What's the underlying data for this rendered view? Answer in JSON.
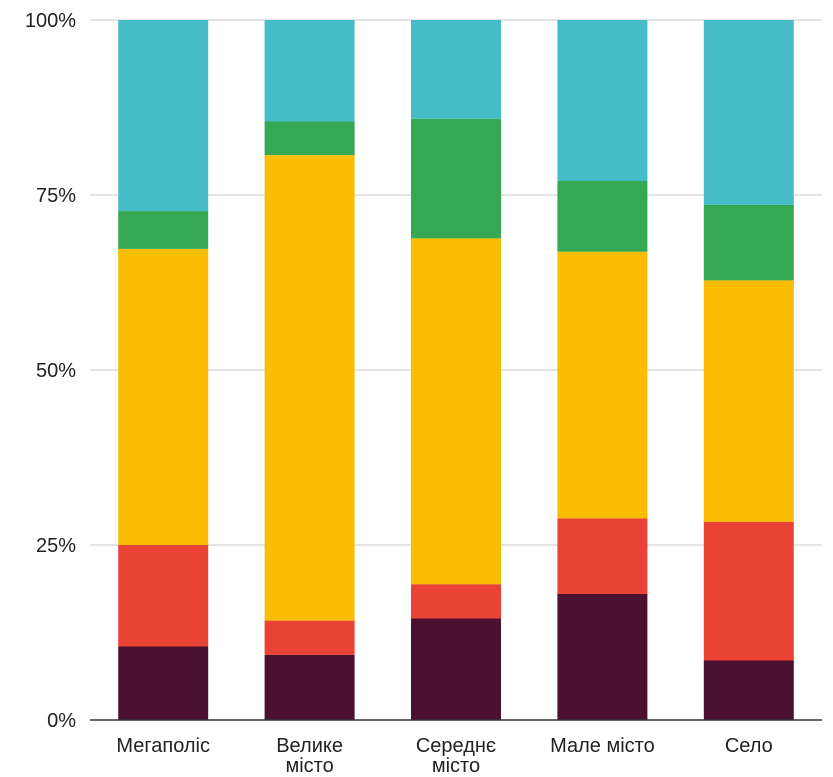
{
  "chart_data": {
    "type": "bar",
    "stacked": true,
    "title": "",
    "xlabel": "",
    "ylabel": "",
    "ylim": [
      0,
      100
    ],
    "yticks": [
      "0%",
      "25%",
      "50%",
      "75%",
      "100%"
    ],
    "grid": true,
    "legend": "none",
    "categories": [
      [
        "Мегаполіс"
      ],
      [
        "Велике",
        "місто"
      ],
      [
        "Середнє",
        "місто"
      ],
      [
        "Мале місто"
      ],
      [
        "Село"
      ]
    ],
    "series": [
      {
        "color": "#4a1130",
        "values": [
          10.5,
          9.3,
          14.5,
          18,
          8.5
        ]
      },
      {
        "color": "#ea4335",
        "values": [
          14.5,
          4.9,
          4.9,
          10.8,
          19.8
        ]
      },
      {
        "color": "#fbbc04",
        "values": [
          42.3,
          66.5,
          49.4,
          38.1,
          34.5
        ]
      },
      {
        "color": "#34a853",
        "values": [
          5.4,
          4.8,
          17.1,
          10.1,
          10.8
        ]
      },
      {
        "color": "#46bdc6",
        "values": [
          27.3,
          14.5,
          14.1,
          23,
          26.4
        ]
      }
    ]
  }
}
